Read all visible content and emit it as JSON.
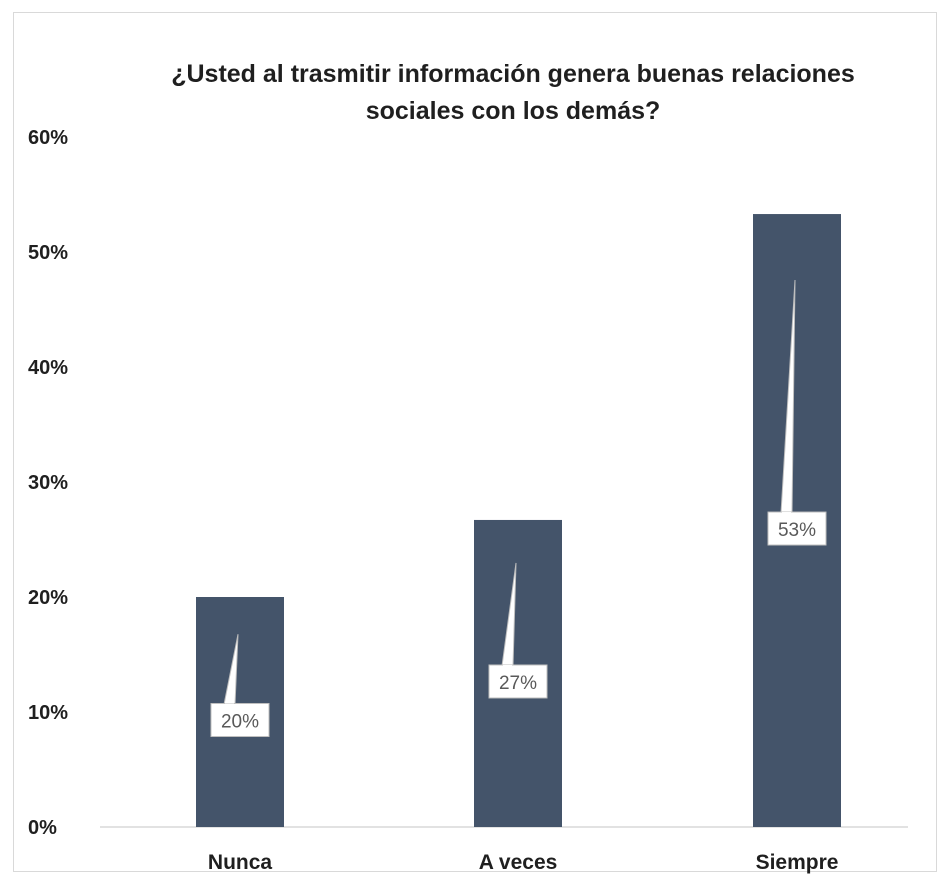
{
  "chart_data": {
    "type": "bar",
    "title_lines": [
      "¿Usted al trasmitir información genera buenas relaciones",
      "sociales con los demás?"
    ],
    "categories": [
      "Nunca",
      "A veces",
      "Siempre"
    ],
    "values": [
      20,
      26.7,
      53.3
    ],
    "data_labels": [
      "20%",
      "27%",
      "53%"
    ],
    "ylim": [
      0,
      60
    ],
    "yticks": [
      0,
      10,
      20,
      30,
      40,
      50,
      60
    ],
    "ytick_labels": [
      "0%",
      "10%",
      "20%",
      "30%",
      "40%",
      "50%",
      "60%"
    ],
    "grid": false,
    "legend": "none",
    "bar_color": "#44546a",
    "label_box_color": "#ffffff",
    "label_box_border": "#bfbfbf"
  }
}
